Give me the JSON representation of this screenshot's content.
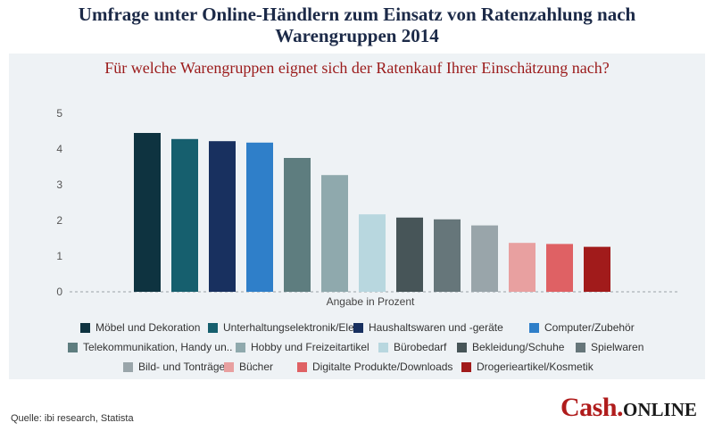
{
  "title_line1": "Umfrage unter Online-Händlern zum Einsatz von Ratenzahlung nach",
  "title_line2": "Warengruppen 2014",
  "subtitle": "Für welche Warengruppen eignet sich der Ratenkauf Ihrer Einschätzung nach?",
  "source": "Quelle: ibi research, Statista",
  "brand": {
    "part1": "Cash.",
    "part2": "ONLINE"
  },
  "chart_data": {
    "type": "bar",
    "title": "Für welche Warengruppen eignet sich der Ratenkauf Ihrer Einschätzung nach?",
    "xlabel": "Angabe in Prozent",
    "ylabel": "",
    "ylim": [
      0,
      5
    ],
    "yticks": [
      "0",
      "1",
      "2",
      "3",
      "4",
      "5"
    ],
    "grid": false,
    "legend_position": "bottom",
    "categories": [
      "Möbel und Dekoration",
      "Unterhaltungselektronik/Ele..",
      "Haushaltswaren und -geräte",
      "Computer/Zubehör",
      "Telekommunikation, Handy un..",
      "Hobby und Freizeitartikel",
      "Bürobedarf",
      "Bekleidung/Schuhe",
      "Spielwaren",
      "Bild- und Tonträger",
      "Bücher",
      "Digitalte Produkte/Downloads",
      "Drogerieartikel/Kosmetik"
    ],
    "values": [
      4.45,
      4.28,
      4.22,
      4.18,
      3.75,
      3.27,
      2.17,
      2.08,
      2.03,
      1.86,
      1.37,
      1.34,
      1.26
    ],
    "colors": [
      "#0e3340",
      "#165f6e",
      "#18305f",
      "#2f7fc9",
      "#5e7d7f",
      "#8fa9ad",
      "#b8d7df",
      "#475558",
      "#66767a",
      "#99a5aa",
      "#e8a0a0",
      "#df6164",
      "#a11b1b"
    ]
  }
}
